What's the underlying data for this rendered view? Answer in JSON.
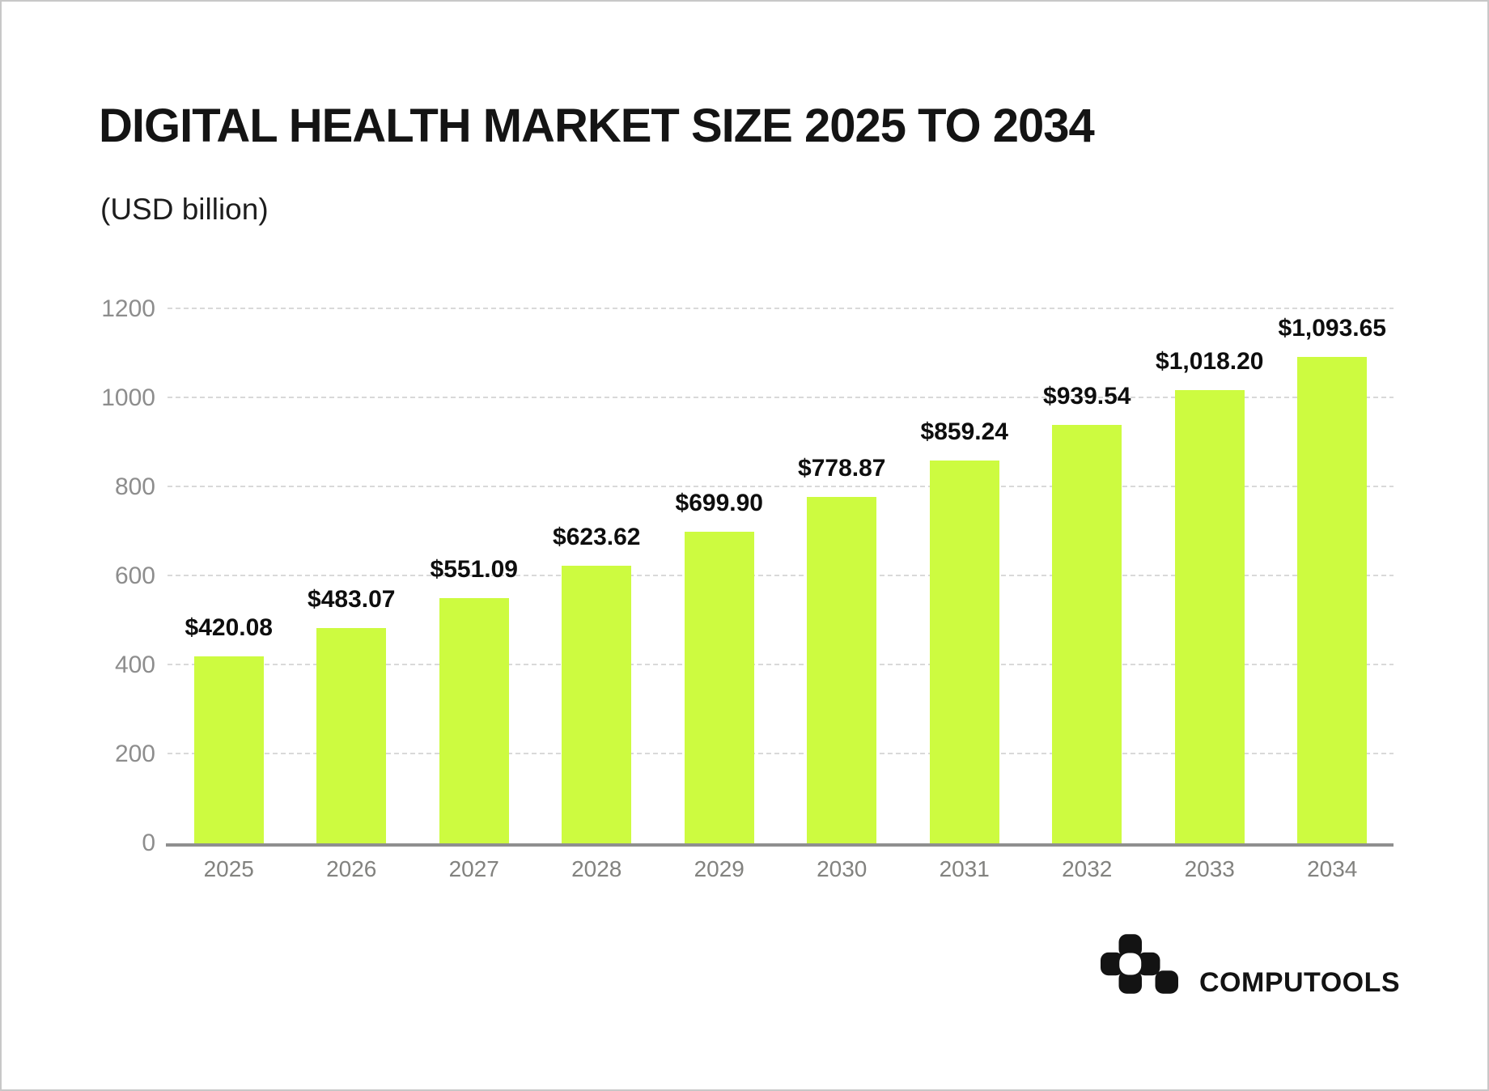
{
  "header": {
    "title": "DIGITAL HEALTH MARKET SIZE 2025 TO 2034",
    "subtitle": "(USD billion)"
  },
  "chart_data": {
    "type": "bar",
    "title": "DIGITAL HEALTH MARKET SIZE 2025 TO 2034",
    "subtitle": "(USD billion)",
    "categories": [
      "2025",
      "2026",
      "2027",
      "2028",
      "2029",
      "2030",
      "2031",
      "2032",
      "2033",
      "2034"
    ],
    "values": [
      420.08,
      483.07,
      551.09,
      623.62,
      699.9,
      778.87,
      859.24,
      939.54,
      1018.2,
      1093.65
    ],
    "value_labels": [
      "$420.08",
      "$483.07",
      "$551.09",
      "$623.62",
      "$699.90",
      "$778.87",
      "$859.24",
      "$939.54",
      "$1,018.20",
      "$1,093.65"
    ],
    "xlabel": "",
    "ylabel": "",
    "ylim": [
      0,
      1200
    ],
    "yticks": [
      0,
      200,
      400,
      600,
      800,
      1000,
      1200
    ],
    "grid": "horizontal dotted",
    "legend": "none",
    "bar_color": "#cdfb40"
  },
  "colors": {
    "bar": "#cdfb40",
    "axis_line": "#8f8f8f",
    "gridline": "#d9d9d9",
    "tick_label": "#8d8d8d",
    "value_label": "#0e0e0e",
    "page_border": "#c8c8c8"
  },
  "footer": {
    "logo_text": "COMPUTOOLS",
    "logo_icon": "computools-pixel-mark"
  }
}
